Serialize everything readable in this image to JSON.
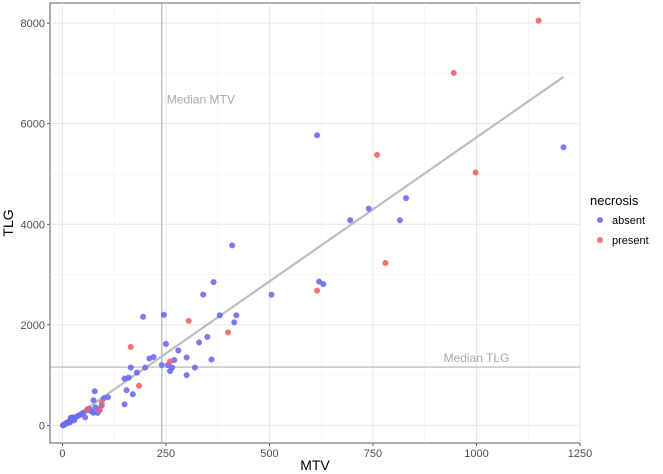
{
  "chart_data": {
    "type": "scatter",
    "xlabel": "MTV",
    "ylabel": "TLG",
    "xlim": [
      -30,
      1250
    ],
    "ylim": [
      -350,
      8400
    ],
    "x_ticks": [
      0,
      250,
      500,
      750,
      1000,
      1250
    ],
    "y_ticks": [
      0,
      2000,
      4000,
      6000,
      8000
    ],
    "grid": true,
    "legend": {
      "title": "necrosis",
      "position": "right"
    },
    "reference_lines": [
      {
        "orientation": "vertical",
        "value": 240,
        "label": "Median MTV"
      },
      {
        "orientation": "horizontal",
        "value": 1160,
        "label": "Median TLG"
      }
    ],
    "fit_line": {
      "x": [
        0,
        1210
      ],
      "y": [
        0,
        6930
      ]
    },
    "series": [
      {
        "name": "absent",
        "color": "#6b6bf0",
        "points": [
          [
            1,
            2
          ],
          [
            2,
            5
          ],
          [
            3,
            10
          ],
          [
            4,
            15
          ],
          [
            5,
            20
          ],
          [
            6,
            25
          ],
          [
            7,
            28
          ],
          [
            8,
            35
          ],
          [
            9,
            40
          ],
          [
            10,
            50
          ],
          [
            11,
            45
          ],
          [
            12,
            55
          ],
          [
            14,
            60
          ],
          [
            15,
            70
          ],
          [
            16,
            80
          ],
          [
            18,
            60
          ],
          [
            20,
            90
          ],
          [
            20,
            150
          ],
          [
            22,
            120
          ],
          [
            25,
            160
          ],
          [
            28,
            100
          ],
          [
            30,
            140
          ],
          [
            35,
            180
          ],
          [
            40,
            200
          ],
          [
            45,
            220
          ],
          [
            50,
            250
          ],
          [
            55,
            160
          ],
          [
            60,
            300
          ],
          [
            65,
            330
          ],
          [
            70,
            280
          ],
          [
            75,
            250
          ],
          [
            75,
            500
          ],
          [
            78,
            680
          ],
          [
            80,
            360
          ],
          [
            85,
            250
          ],
          [
            90,
            320
          ],
          [
            95,
            400
          ],
          [
            100,
            540
          ],
          [
            110,
            560
          ],
          [
            150,
            420
          ],
          [
            150,
            930
          ],
          [
            155,
            700
          ],
          [
            160,
            950
          ],
          [
            165,
            1150
          ],
          [
            170,
            620
          ],
          [
            180,
            1050
          ],
          [
            195,
            2160
          ],
          [
            200,
            1150
          ],
          [
            210,
            1330
          ],
          [
            220,
            1360
          ],
          [
            240,
            1200
          ],
          [
            245,
            2200
          ],
          [
            250,
            1620
          ],
          [
            255,
            1200
          ],
          [
            260,
            1080
          ],
          [
            265,
            1150
          ],
          [
            270,
            1300
          ],
          [
            280,
            1490
          ],
          [
            300,
            1000
          ],
          [
            300,
            1350
          ],
          [
            320,
            1150
          ],
          [
            330,
            1650
          ],
          [
            340,
            2600
          ],
          [
            350,
            1760
          ],
          [
            360,
            1310
          ],
          [
            365,
            2850
          ],
          [
            380,
            2190
          ],
          [
            410,
            3580
          ],
          [
            415,
            2050
          ],
          [
            420,
            2190
          ],
          [
            505,
            2600
          ],
          [
            615,
            5770
          ],
          [
            620,
            2860
          ],
          [
            630,
            2810
          ],
          [
            695,
            4080
          ],
          [
            740,
            4310
          ],
          [
            815,
            4080
          ],
          [
            830,
            4520
          ],
          [
            1210,
            5530
          ]
        ]
      },
      {
        "name": "present",
        "color": "#f06464",
        "points": [
          [
            60,
            320
          ],
          [
            90,
            300
          ],
          [
            95,
            450
          ],
          [
            165,
            1560
          ],
          [
            185,
            790
          ],
          [
            260,
            1270
          ],
          [
            305,
            2080
          ],
          [
            400,
            1850
          ],
          [
            615,
            2680
          ],
          [
            760,
            5380
          ],
          [
            780,
            3230
          ],
          [
            945,
            7010
          ],
          [
            998,
            5030
          ],
          [
            1150,
            8050
          ]
        ]
      }
    ]
  }
}
